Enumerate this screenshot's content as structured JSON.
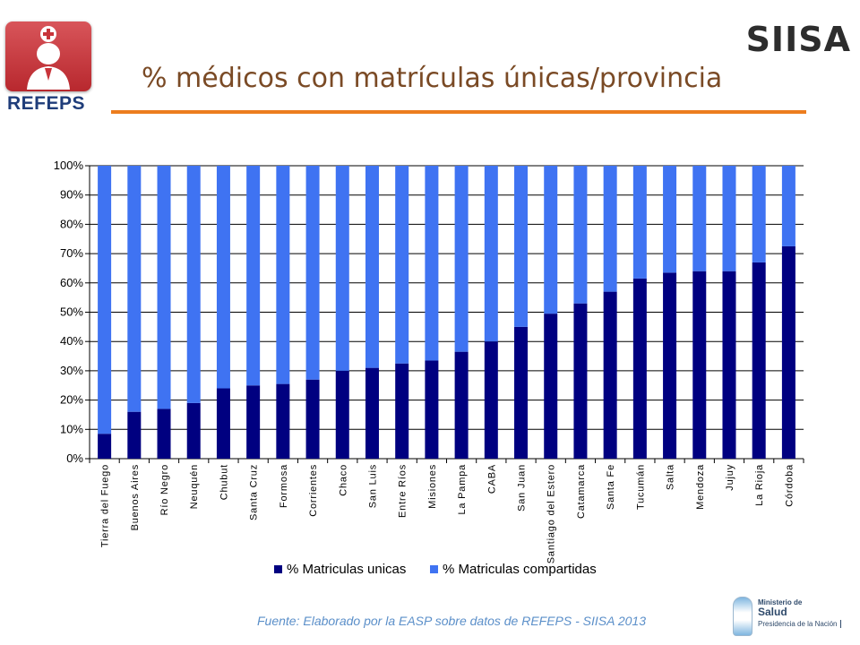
{
  "header": {
    "logo_text": "REFEPS",
    "brand": "SIISA",
    "title": "% médicos con matrículas únicas/provincia"
  },
  "colors": {
    "unicas": "#000080",
    "compartidas": "#3f73f2",
    "title_rule": "#ec7d1e",
    "title_text": "#7a4a25",
    "source_text": "#5b8fc9"
  },
  "chart_data": {
    "type": "bar",
    "stacked": true,
    "title": "",
    "xlabel": "",
    "ylabel": "",
    "ylim": [
      0,
      100
    ],
    "yticks": [
      "0%",
      "10%",
      "20%",
      "30%",
      "40%",
      "50%",
      "60%",
      "70%",
      "80%",
      "90%",
      "100%"
    ],
    "grid": true,
    "legend_position": "bottom",
    "categories": [
      "Tierra del Fuego",
      "Buenos Aires",
      "Río Negro",
      "Neuquén",
      "Chubut",
      "Santa Cruz",
      "Formosa",
      "Corrientes",
      "Chaco",
      "San Luis",
      "Entre Ríos",
      "Misiones",
      "La Pampa",
      "CABA",
      "San Juan",
      "Santiago del Estero",
      "Catamarca",
      "Santa Fe",
      "Tucumán",
      "Salta",
      "Mendoza",
      "Jujuy",
      "La Rioja",
      "Córdoba"
    ],
    "series": [
      {
        "name": "% Matriculas unicas",
        "values": [
          8.5,
          16,
          17,
          19,
          24,
          25,
          25.5,
          27,
          30,
          31,
          32.5,
          33.5,
          36.5,
          40,
          45,
          49.5,
          53,
          57,
          61.5,
          63.5,
          64,
          64,
          67,
          72.5
        ]
      },
      {
        "name": "% Matriculas compartidas",
        "values": [
          91.5,
          84,
          83,
          81,
          76,
          75,
          74.5,
          73,
          70,
          69,
          67.5,
          66.5,
          63.5,
          60,
          55,
          50.5,
          47,
          43,
          38.5,
          36.5,
          36,
          36,
          33,
          27.5
        ]
      }
    ]
  },
  "footer": {
    "source": "Fuente: Elaborado por la EASP sobre datos de REFEPS - SIISA 2013",
    "ministry_line1": "Ministerio de",
    "ministry_line2": "Salud",
    "ministry_line3": "Presidencia de la Nación"
  }
}
